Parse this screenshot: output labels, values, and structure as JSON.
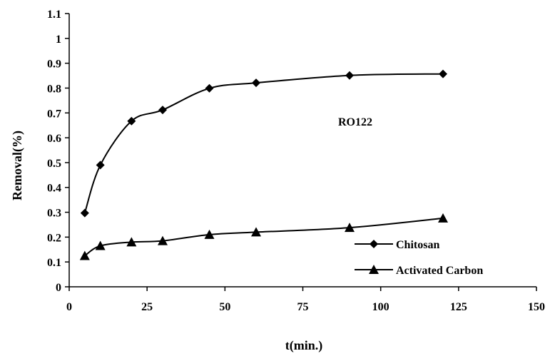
{
  "chart_data": {
    "type": "line",
    "title": "",
    "xlabel": "t(min.)",
    "ylabel": "Removal(%)",
    "xlim": [
      0,
      150
    ],
    "ylim": [
      0,
      1.1
    ],
    "x_ticks": [
      "0",
      "25",
      "50",
      "75",
      "100",
      "125",
      "150"
    ],
    "y_ticks": [
      "0",
      "0.1",
      "0.2",
      "0.3",
      "0.4",
      "0.5",
      "0.6",
      "0.7",
      "0.8",
      "0.9",
      "1",
      "1.1"
    ],
    "grid": false,
    "legend_position": "bottom-right",
    "annotation": "RO122",
    "series": [
      {
        "name": "Chitosan",
        "marker": "diamond",
        "color": "#000000",
        "x": [
          5,
          10,
          20,
          30,
          45,
          60,
          90,
          120
        ],
        "y": [
          0.297,
          0.49,
          0.667,
          0.712,
          0.799,
          0.821,
          0.851,
          0.857
        ]
      },
      {
        "name": "Activated Carbon",
        "marker": "triangle",
        "color": "#000000",
        "x": [
          5,
          10,
          20,
          30,
          45,
          60,
          90,
          120
        ],
        "y": [
          0.125,
          0.165,
          0.18,
          0.185,
          0.21,
          0.22,
          0.238,
          0.276
        ]
      }
    ]
  }
}
